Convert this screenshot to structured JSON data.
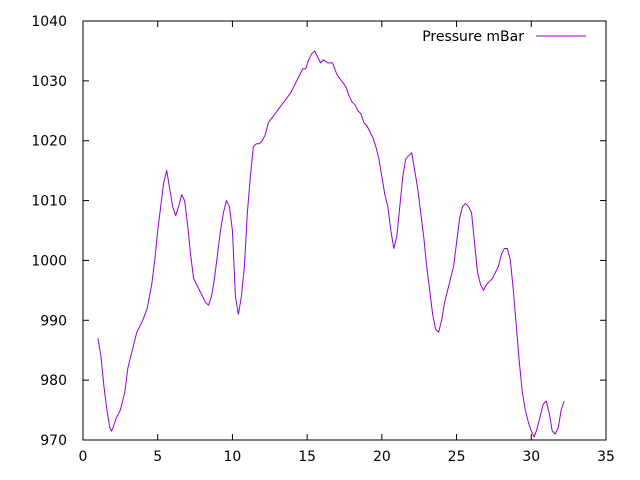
{
  "chart_data": {
    "type": "line",
    "title": "",
    "xlabel": "",
    "ylabel": "",
    "xlim": [
      0,
      35
    ],
    "ylim": [
      970,
      1040
    ],
    "xticks": [
      0,
      5,
      10,
      15,
      20,
      25,
      30,
      35
    ],
    "yticks": [
      970,
      980,
      990,
      1000,
      1010,
      1020,
      1030,
      1040
    ],
    "grid": false,
    "legend_position": "top-right",
    "series": [
      {
        "name": "Pressure mBar",
        "color": "#9400d3",
        "points": [
          [
            1.0,
            987
          ],
          [
            1.2,
            984
          ],
          [
            1.4,
            979
          ],
          [
            1.6,
            975
          ],
          [
            1.8,
            972
          ],
          [
            1.9,
            971.5
          ],
          [
            2.0,
            972
          ],
          [
            2.2,
            973.5
          ],
          [
            2.5,
            975
          ],
          [
            2.8,
            978
          ],
          [
            3.0,
            982
          ],
          [
            3.3,
            985
          ],
          [
            3.6,
            988
          ],
          [
            4.0,
            990
          ],
          [
            4.3,
            992
          ],
          [
            4.6,
            996
          ],
          [
            4.8,
            1000
          ],
          [
            5.0,
            1005
          ],
          [
            5.2,
            1009
          ],
          [
            5.4,
            1013
          ],
          [
            5.6,
            1015
          ],
          [
            5.8,
            1012
          ],
          [
            6.0,
            1009
          ],
          [
            6.2,
            1007.5
          ],
          [
            6.4,
            1009
          ],
          [
            6.6,
            1011
          ],
          [
            6.8,
            1010
          ],
          [
            7.0,
            1006
          ],
          [
            7.2,
            1001
          ],
          [
            7.4,
            997
          ],
          [
            7.6,
            996
          ],
          [
            7.8,
            995
          ],
          [
            8.0,
            994
          ],
          [
            8.2,
            993
          ],
          [
            8.4,
            992.5
          ],
          [
            8.6,
            994
          ],
          [
            8.8,
            997
          ],
          [
            9.0,
            1001
          ],
          [
            9.2,
            1005
          ],
          [
            9.4,
            1008
          ],
          [
            9.6,
            1010
          ],
          [
            9.8,
            1009
          ],
          [
            10.0,
            1005
          ],
          [
            10.2,
            994
          ],
          [
            10.4,
            991
          ],
          [
            10.6,
            994
          ],
          [
            10.8,
            999
          ],
          [
            11.0,
            1008
          ],
          [
            11.2,
            1014
          ],
          [
            11.4,
            1019
          ],
          [
            11.6,
            1019.5
          ],
          [
            11.8,
            1019.5
          ],
          [
            12.0,
            1020
          ],
          [
            12.2,
            1021
          ],
          [
            12.4,
            1023
          ],
          [
            12.7,
            1024
          ],
          [
            13.0,
            1025
          ],
          [
            13.3,
            1026
          ],
          [
            13.6,
            1027
          ],
          [
            13.9,
            1028
          ],
          [
            14.1,
            1029
          ],
          [
            14.3,
            1030
          ],
          [
            14.5,
            1031
          ],
          [
            14.7,
            1032
          ],
          [
            14.9,
            1032
          ],
          [
            15.1,
            1033.5
          ],
          [
            15.3,
            1034.5
          ],
          [
            15.5,
            1035
          ],
          [
            15.7,
            1034
          ],
          [
            15.9,
            1033
          ],
          [
            16.1,
            1033.5
          ],
          [
            16.4,
            1033
          ],
          [
            16.7,
            1033
          ],
          [
            17.0,
            1031
          ],
          [
            17.3,
            1030
          ],
          [
            17.6,
            1029
          ],
          [
            17.8,
            1027.5
          ],
          [
            18.0,
            1026.5
          ],
          [
            18.2,
            1026
          ],
          [
            18.4,
            1025
          ],
          [
            18.6,
            1024.5
          ],
          [
            18.8,
            1023
          ],
          [
            19.0,
            1022.5
          ],
          [
            19.2,
            1021.5
          ],
          [
            19.4,
            1020.5
          ],
          [
            19.6,
            1019
          ],
          [
            19.8,
            1017
          ],
          [
            20.0,
            1014
          ],
          [
            20.2,
            1011
          ],
          [
            20.4,
            1009
          ],
          [
            20.6,
            1005
          ],
          [
            20.8,
            1002
          ],
          [
            21.0,
            1004
          ],
          [
            21.2,
            1009
          ],
          [
            21.4,
            1014
          ],
          [
            21.6,
            1017
          ],
          [
            21.8,
            1017.5
          ],
          [
            22.0,
            1018
          ],
          [
            22.2,
            1015
          ],
          [
            22.4,
            1012
          ],
          [
            22.6,
            1008
          ],
          [
            22.8,
            1004
          ],
          [
            23.0,
            999
          ],
          [
            23.2,
            995
          ],
          [
            23.4,
            991
          ],
          [
            23.6,
            988.5
          ],
          [
            23.8,
            988
          ],
          [
            24.0,
            990
          ],
          [
            24.2,
            993
          ],
          [
            24.4,
            995
          ],
          [
            24.6,
            997
          ],
          [
            24.8,
            999
          ],
          [
            25.0,
            1003
          ],
          [
            25.2,
            1007
          ],
          [
            25.4,
            1009
          ],
          [
            25.6,
            1009.5
          ],
          [
            25.8,
            1009
          ],
          [
            26.0,
            1008
          ],
          [
            26.2,
            1003
          ],
          [
            26.4,
            998
          ],
          [
            26.6,
            996
          ],
          [
            26.8,
            995
          ],
          [
            27.0,
            996
          ],
          [
            27.2,
            996.5
          ],
          [
            27.4,
            997
          ],
          [
            27.6,
            998
          ],
          [
            27.8,
            999
          ],
          [
            28.0,
            1001
          ],
          [
            28.2,
            1002
          ],
          [
            28.4,
            1002
          ],
          [
            28.6,
            1000
          ],
          [
            28.8,
            995
          ],
          [
            29.0,
            989
          ],
          [
            29.2,
            983
          ],
          [
            29.4,
            978
          ],
          [
            29.6,
            975
          ],
          [
            29.8,
            973
          ],
          [
            30.0,
            971.5
          ],
          [
            30.2,
            970.5
          ],
          [
            30.4,
            972
          ],
          [
            30.6,
            974
          ],
          [
            30.8,
            976
          ],
          [
            31.0,
            976.5
          ],
          [
            31.2,
            974.5
          ],
          [
            31.4,
            971.5
          ],
          [
            31.6,
            971
          ],
          [
            31.8,
            972
          ],
          [
            32.0,
            975
          ],
          [
            32.2,
            976.5
          ]
        ]
      }
    ]
  }
}
